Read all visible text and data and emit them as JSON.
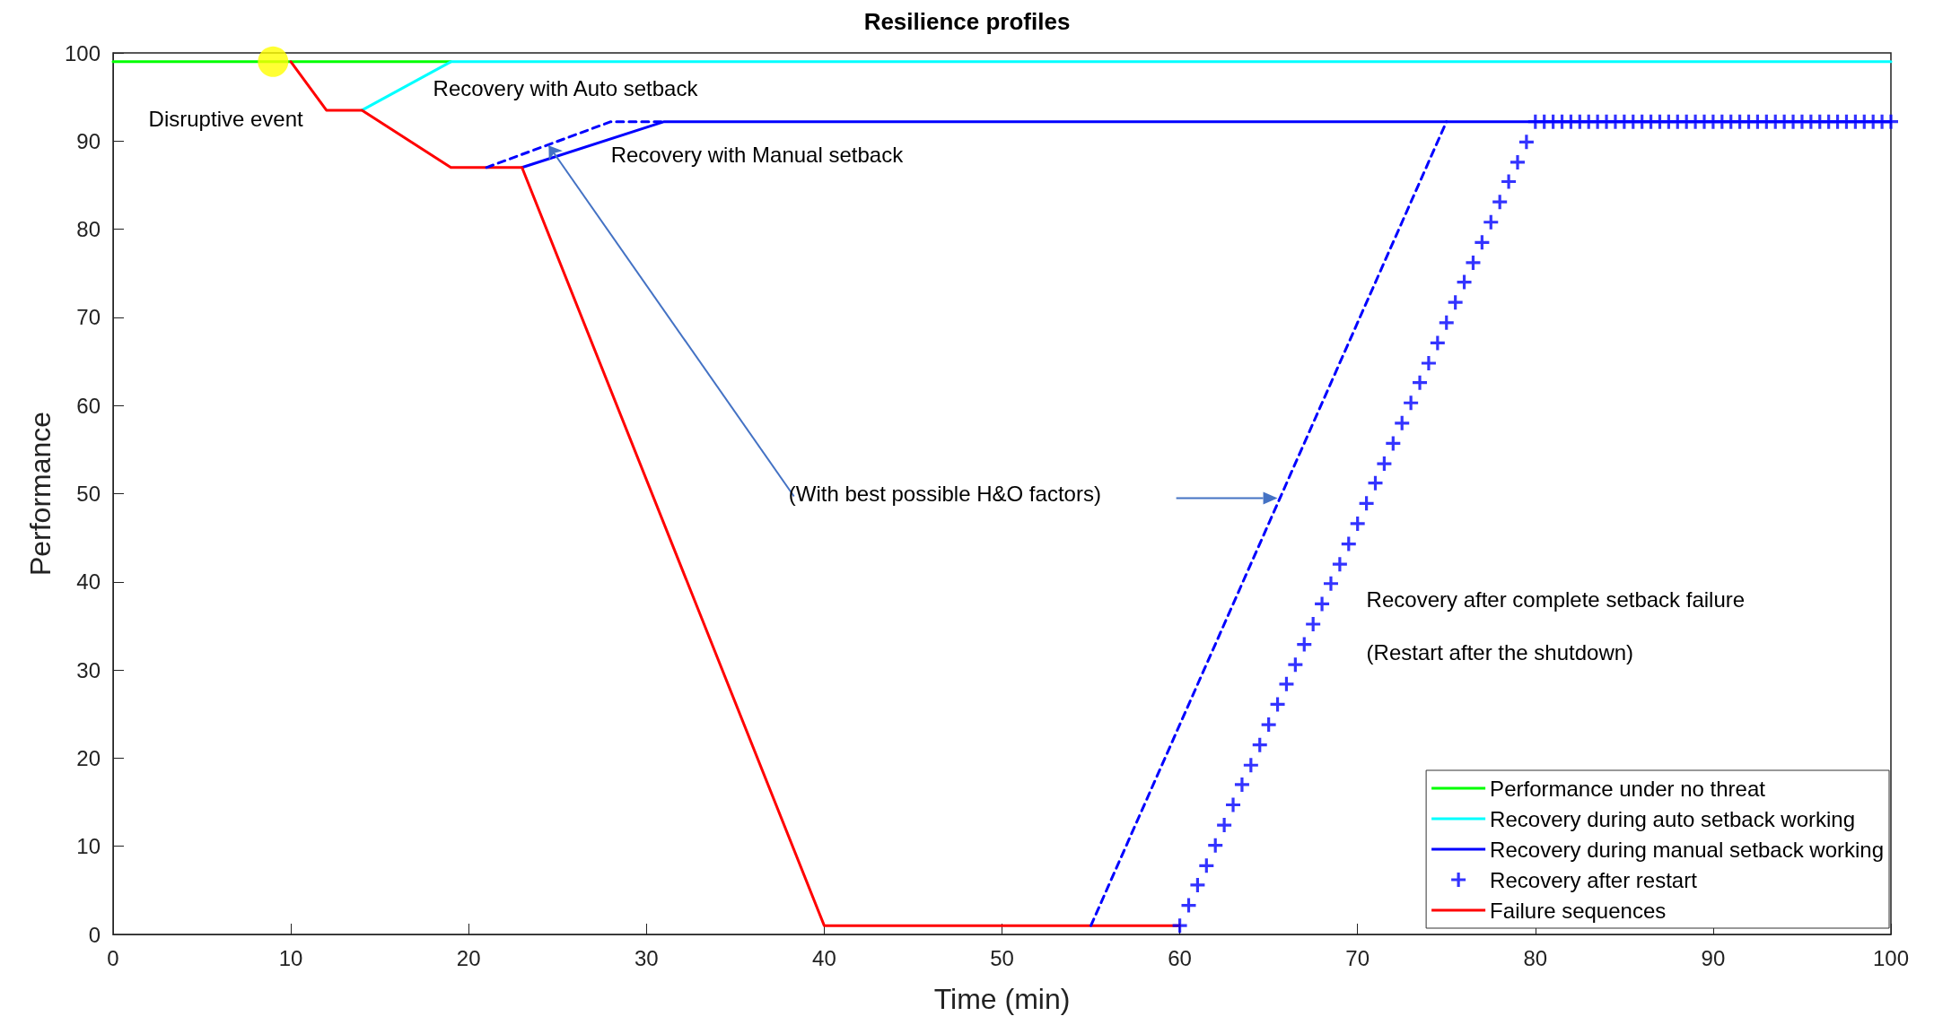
{
  "chart_data": {
    "type": "line",
    "title": "Resilience profiles",
    "xlabel": "Time (min)",
    "ylabel": "Performance",
    "xlim": [
      0,
      100
    ],
    "xticks": [
      0,
      10,
      20,
      30,
      40,
      50,
      60,
      70,
      80,
      90,
      100
    ],
    "ylim": [
      0,
      100
    ],
    "yticks": [
      0,
      10,
      20,
      30,
      40,
      50,
      60,
      70,
      80,
      90,
      100
    ],
    "grid": false,
    "legend": "bottom right",
    "marker": "none",
    "line_style": "solid",
    "series": [
      {
        "name": "Performance under no threat",
        "color": "#00ff00",
        "x": [
          0,
          19
        ],
        "values": [
          99,
          99
        ]
      },
      {
        "name": "Recovery during auto setback working",
        "color": "#00ffff",
        "x": [
          14,
          19,
          100
        ],
        "values": [
          93.5,
          99,
          99
        ]
      },
      {
        "name": "Recovery during manual setback working",
        "color": "#0000ff",
        "x": [
          23,
          31,
          100
        ],
        "values": [
          87,
          92.2,
          92.2
        ]
      },
      {
        "name": "Recovery after restart",
        "type": "scatter",
        "marker": "cross",
        "color": "#0000ff",
        "x": [
          60,
          60.5,
          61,
          61.5,
          62,
          62.5,
          63,
          63.5,
          64,
          64.5,
          65,
          65.5,
          66,
          66.5,
          67,
          67.5,
          68,
          68.5,
          69,
          69.5,
          70,
          70.5,
          71,
          71.5,
          72,
          72.5,
          73,
          73.5,
          74,
          74.5,
          75,
          75.5,
          76,
          76.5,
          77,
          77.5,
          78,
          78.5,
          79,
          79.5,
          80,
          80.5,
          81,
          81.5,
          82,
          82.5,
          83,
          83.5,
          84,
          84.5,
          85,
          85.5,
          86,
          86.5,
          87,
          87.5,
          88,
          88.5,
          89,
          89.5,
          90,
          90.5,
          91,
          91.5,
          92,
          92.5,
          93,
          93.5,
          94,
          94.5,
          95,
          95.5,
          96,
          96.5,
          97,
          97.5,
          98,
          98.5,
          99,
          99.5,
          100
        ],
        "values": [
          1,
          3.3,
          5.6,
          7.8,
          10.1,
          12.4,
          14.7,
          17,
          19.2,
          21.5,
          23.8,
          26.1,
          28.4,
          30.6,
          32.9,
          35.2,
          37.5,
          39.8,
          42,
          44.3,
          46.6,
          48.9,
          51.2,
          53.4,
          55.7,
          58,
          60.3,
          62.6,
          64.8,
          67.1,
          69.4,
          71.7,
          74,
          76.2,
          78.5,
          80.8,
          83.1,
          85.4,
          87.6,
          89.9,
          92.2,
          92.2,
          92.2,
          92.2,
          92.2,
          92.2,
          92.2,
          92.2,
          92.2,
          92.2,
          92.2,
          92.2,
          92.2,
          92.2,
          92.2,
          92.2,
          92.2,
          92.2,
          92.2,
          92.2,
          92.2,
          92.2,
          92.2,
          92.2,
          92.2,
          92.2,
          92.2,
          92.2,
          92.2,
          92.2,
          92.2,
          92.2,
          92.2,
          92.2,
          92.2,
          92.2,
          92.2,
          92.2,
          92.2,
          92.2,
          92.2
        ]
      },
      {
        "name": "Failure sequences",
        "color": "#ff0000",
        "x": [
          10,
          12,
          14,
          19,
          23,
          40,
          60
        ],
        "values": [
          99,
          93.5,
          93.5,
          87,
          87,
          1,
          1
        ]
      },
      {
        "color": "#0000ff",
        "line_style": "dashed",
        "x": [
          21,
          28,
          31
        ],
        "values": [
          87,
          92.2,
          92.2
        ]
      },
      {
        "color": "#0000ff",
        "line_style": "dashed",
        "x": [
          55,
          75
        ],
        "values": [
          1,
          92.2
        ]
      },
      {
        "type": "scatter",
        "marker": "circle",
        "color": "#ffff00",
        "x": [
          9
        ],
        "values": [
          99
        ]
      }
    ],
    "annotations": [
      "Disruptive event",
      "Recovery with Auto setback",
      "Recovery with Manual setback",
      {
        "text": "(With best possible H&O factors)",
        "x": 24.5,
        "y": 89.5
      },
      "Recovery after complete setback failure",
      "(Restart after the shutdown)"
    ]
  }
}
